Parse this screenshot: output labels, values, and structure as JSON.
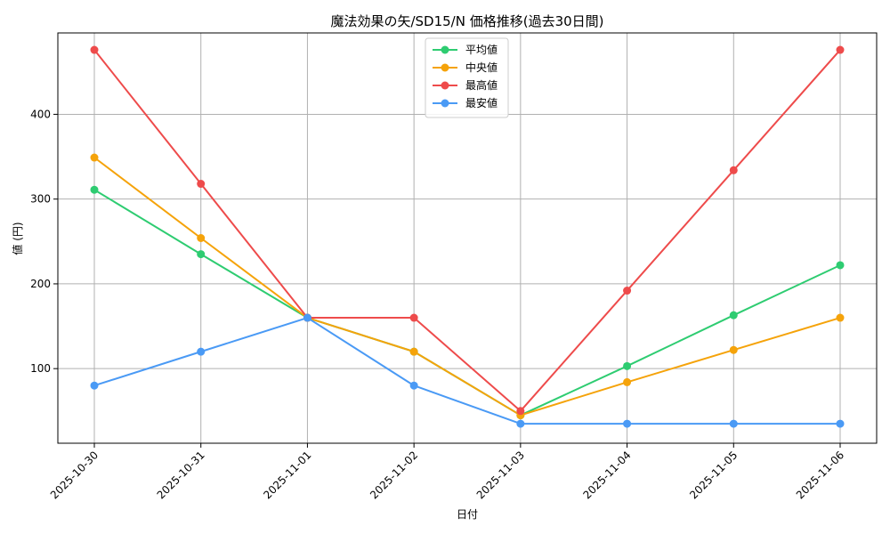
{
  "chart_data": {
    "type": "line",
    "title": "魔法効果の矢/SD15/N 価格推移(過去30日間)",
    "xlabel": "日付",
    "ylabel": "値 (円)",
    "categories": [
      "2025-10-30",
      "2025-10-31",
      "2025-11-01",
      "2025-11-02",
      "2025-11-03",
      "2025-11-04",
      "2025-11-05",
      "2025-11-06"
    ],
    "yticks": [
      100,
      200,
      300,
      400
    ],
    "ylim": [
      12,
      496
    ],
    "grid": true,
    "legend_position": "top-center",
    "series": [
      {
        "name": "平均値",
        "color": "#2ecc71",
        "values": [
          311,
          235,
          160,
          120,
          45,
          103,
          163,
          222
        ]
      },
      {
        "name": "中央値",
        "color": "#f5a30a",
        "values": [
          349,
          254,
          160,
          120,
          45,
          84,
          122,
          160
        ]
      },
      {
        "name": "最高値",
        "color": "#ee4b4b",
        "values": [
          476,
          318,
          160,
          160,
          50,
          192,
          334,
          476
        ]
      },
      {
        "name": "最安値",
        "color": "#4a9af5",
        "values": [
          80,
          120,
          160,
          80,
          35,
          35,
          35,
          35
        ]
      }
    ]
  }
}
